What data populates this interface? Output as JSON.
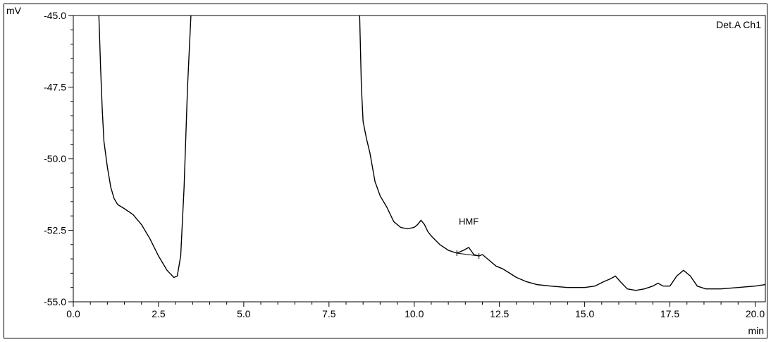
{
  "chart_data": {
    "type": "line",
    "title": "",
    "xlabel": "min",
    "ylabel": "mV",
    "xlim": [
      0.0,
      20.3
    ],
    "ylim": [
      -55.0,
      -45.0
    ],
    "x_ticks": [
      0.0,
      2.5,
      5.0,
      7.5,
      10.0,
      12.5,
      15.0,
      17.5,
      20.0
    ],
    "x_tick_labels": [
      "0.0",
      "2.5",
      "5.0",
      "7.5",
      "10.0",
      "12.5",
      "15.0",
      "17.5",
      "20.0"
    ],
    "y_ticks": [
      -55.0,
      -52.5,
      -50.0,
      -47.5,
      -45.0
    ],
    "y_tick_labels": [
      "-55.0",
      "-52.5",
      "-50.0",
      "-47.5",
      "-45.0"
    ],
    "legend": {
      "label": "Det.A Ch1",
      "placement": "top-right"
    },
    "grid": false,
    "line_color": "#000000",
    "annotations": [
      {
        "text": "HMF",
        "x": 11.6,
        "y": -52.3
      }
    ],
    "series": [
      {
        "name": "Det.A Ch1",
        "segments": [
          [
            [
              0.75,
              -45.0
            ],
            [
              0.8,
              -46.8
            ],
            [
              0.85,
              -48.3
            ],
            [
              0.9,
              -49.4
            ],
            [
              1.0,
              -50.3
            ],
            [
              1.1,
              -51.0
            ],
            [
              1.2,
              -51.4
            ],
            [
              1.3,
              -51.6
            ],
            [
              1.5,
              -51.75
            ],
            [
              1.75,
              -51.95
            ],
            [
              2.0,
              -52.3
            ],
            [
              2.25,
              -52.8
            ],
            [
              2.5,
              -53.4
            ],
            [
              2.75,
              -53.9
            ],
            [
              2.95,
              -54.15
            ],
            [
              3.05,
              -54.1
            ],
            [
              3.15,
              -53.4
            ],
            [
              3.25,
              -51.0
            ],
            [
              3.35,
              -47.5
            ],
            [
              3.45,
              -45.0
            ]
          ],
          [
            [
              8.4,
              -45.0
            ],
            [
              8.45,
              -47.5
            ],
            [
              8.5,
              -48.7
            ],
            [
              8.6,
              -49.3
            ],
            [
              8.7,
              -49.8
            ],
            [
              8.85,
              -50.8
            ],
            [
              9.0,
              -51.3
            ],
            [
              9.2,
              -51.7
            ],
            [
              9.4,
              -52.2
            ],
            [
              9.6,
              -52.4
            ],
            [
              9.8,
              -52.45
            ],
            [
              10.0,
              -52.4
            ],
            [
              10.1,
              -52.3
            ],
            [
              10.2,
              -52.15
            ],
            [
              10.3,
              -52.3
            ],
            [
              10.4,
              -52.55
            ],
            [
              10.5,
              -52.7
            ],
            [
              10.75,
              -53.0
            ],
            [
              11.0,
              -53.2
            ],
            [
              11.25,
              -53.3
            ],
            [
              11.45,
              -53.2
            ],
            [
              11.6,
              -53.1
            ],
            [
              11.75,
              -53.35
            ],
            [
              11.9,
              -53.4
            ],
            [
              12.0,
              -53.35
            ],
            [
              12.2,
              -53.55
            ],
            [
              12.4,
              -53.75
            ],
            [
              12.6,
              -53.85
            ],
            [
              12.8,
              -54.0
            ],
            [
              13.0,
              -54.15
            ],
            [
              13.3,
              -54.3
            ],
            [
              13.6,
              -54.4
            ],
            [
              14.0,
              -54.45
            ],
            [
              14.5,
              -54.5
            ],
            [
              15.0,
              -54.5
            ],
            [
              15.3,
              -54.45
            ],
            [
              15.55,
              -54.3
            ],
            [
              15.75,
              -54.2
            ],
            [
              15.9,
              -54.1
            ],
            [
              16.05,
              -54.3
            ],
            [
              16.25,
              -54.55
            ],
            [
              16.5,
              -54.6
            ],
            [
              16.75,
              -54.55
            ],
            [
              17.0,
              -54.45
            ],
            [
              17.15,
              -54.35
            ],
            [
              17.3,
              -54.45
            ],
            [
              17.5,
              -54.45
            ],
            [
              17.7,
              -54.1
            ],
            [
              17.9,
              -53.9
            ],
            [
              18.1,
              -54.1
            ],
            [
              18.3,
              -54.45
            ],
            [
              18.55,
              -54.55
            ],
            [
              19.0,
              -54.55
            ],
            [
              19.5,
              -54.5
            ],
            [
              20.0,
              -54.45
            ],
            [
              20.3,
              -54.4
            ]
          ]
        ]
      }
    ]
  }
}
